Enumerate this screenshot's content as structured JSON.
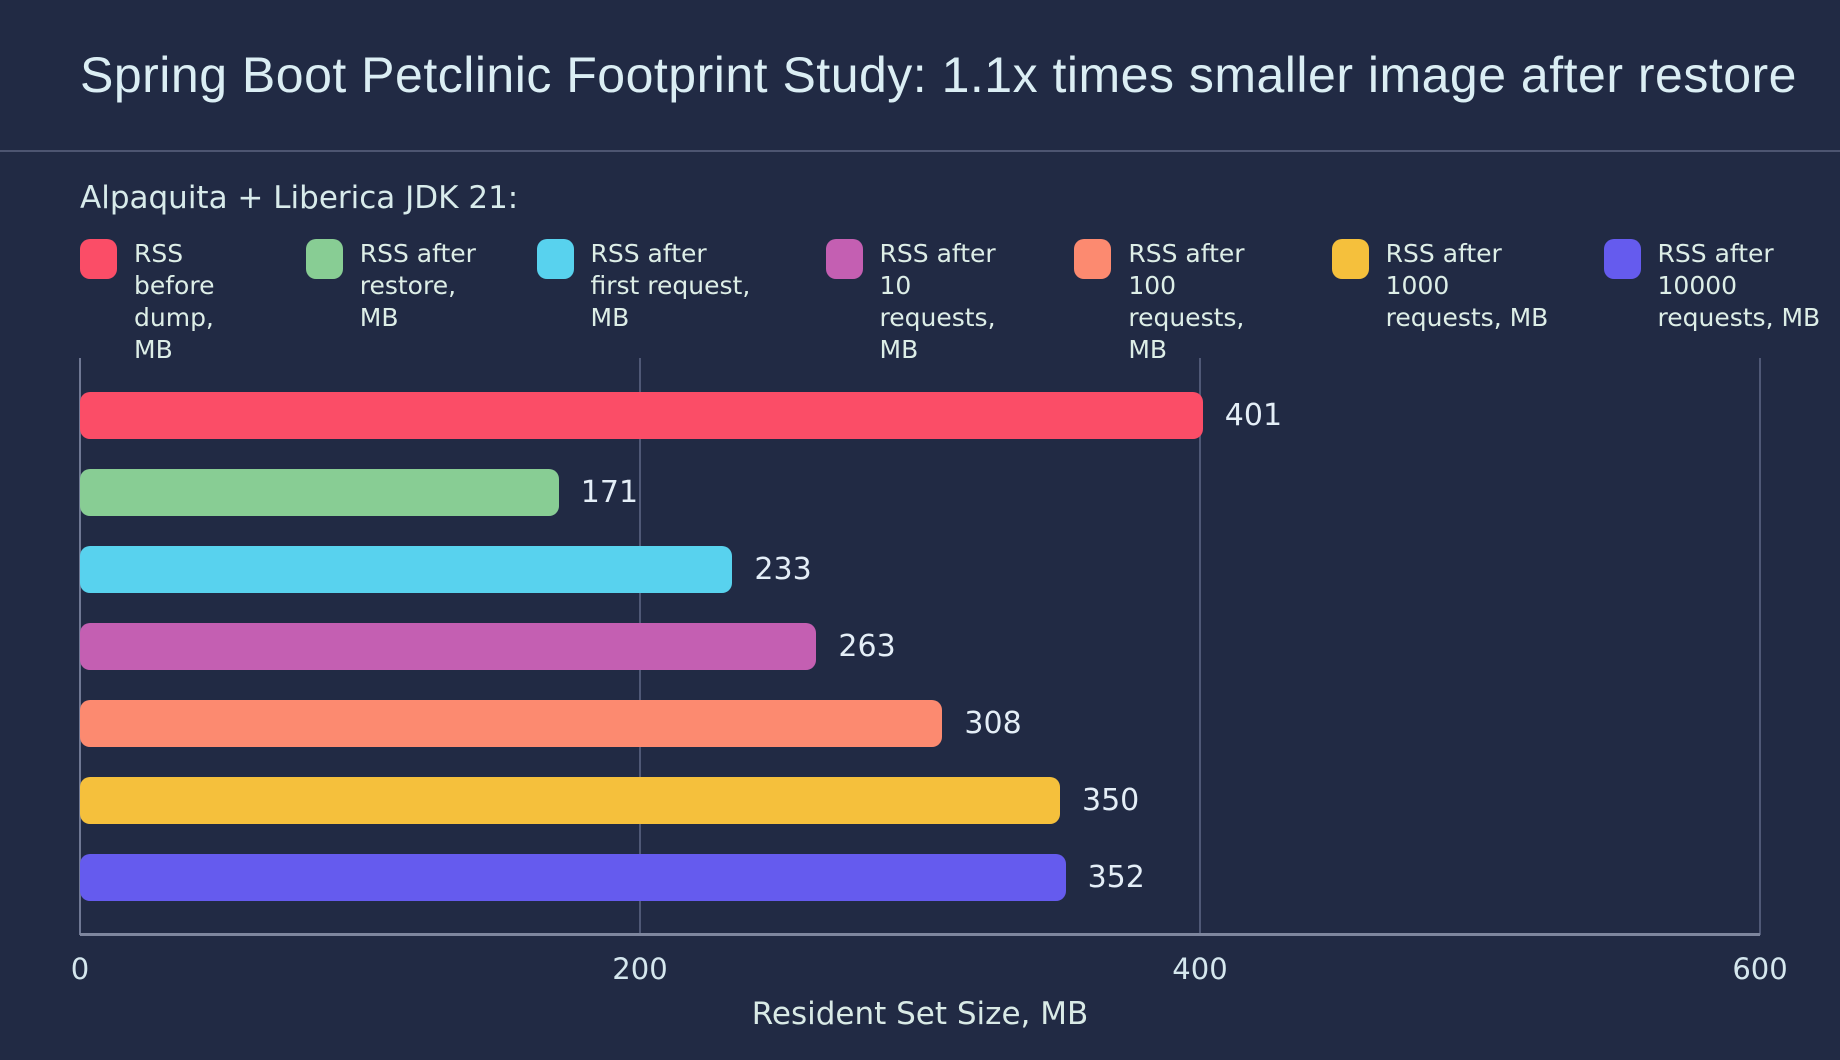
{
  "title": "Spring Boot Petclinic Footprint Study: 1.1x times smaller image after restore",
  "legend": {
    "heading": "Alpaquita + Liberica JDK 21:",
    "items": [
      {
        "line1": "RSS before",
        "line2": "dump, MB",
        "color": "#fb4d67"
      },
      {
        "line1": "RSS after",
        "line2": "restore, MB",
        "color": "#88cd94"
      },
      {
        "line1": "RSS after",
        "line2": "first request, MB",
        "color": "#58d2ee"
      },
      {
        "line1": "RSS after 10",
        "line2": "requests, MB",
        "color": "#c45fb2"
      },
      {
        "line1": "RSS after 100",
        "line2": "requests, MB",
        "color": "#fc8a70"
      },
      {
        "line1": "RSS after 1000",
        "line2": "requests, MB",
        "color": "#f5c03c"
      },
      {
        "line1": "RSS after 10000",
        "line2": "requests, MB",
        "color": "#655bee"
      }
    ]
  },
  "chart_data": {
    "type": "bar",
    "orientation": "horizontal",
    "title": "Spring Boot Petclinic Footprint Study: 1.1x times smaller image after restore",
    "subtitle": "Alpaquita + Liberica JDK 21:",
    "series": [
      {
        "name": "RSS before dump, MB",
        "value": 401,
        "color": "#fb4d67"
      },
      {
        "name": "RSS after restore, MB",
        "value": 171,
        "color": "#88cd94"
      },
      {
        "name": "RSS after first request, MB",
        "value": 233,
        "color": "#58d2ee"
      },
      {
        "name": "RSS after 10 requests, MB",
        "value": 263,
        "color": "#c45fb2"
      },
      {
        "name": "RSS after 100 requests, MB",
        "value": 308,
        "color": "#fc8a70"
      },
      {
        "name": "RSS after 1000 requests, MB",
        "value": 350,
        "color": "#f5c03c"
      },
      {
        "name": "RSS after 10000 requests, MB",
        "value": 352,
        "color": "#655bee"
      }
    ],
    "xlabel": "Resident Set Size, MB",
    "xlim": [
      0,
      600
    ],
    "xticks": [
      0,
      200,
      400,
      600
    ],
    "grid": true,
    "legend_position": "top",
    "value_labels": true
  },
  "colors": {
    "background": "#212a44",
    "title_text": "#dbeef4",
    "divider": "#4d5571",
    "legend_text": "#ddeee7",
    "gridline": "#4f5876",
    "axis_line": "#7e869e",
    "tick_text": "#d5e7ee",
    "value_text": "#e4eef7"
  }
}
